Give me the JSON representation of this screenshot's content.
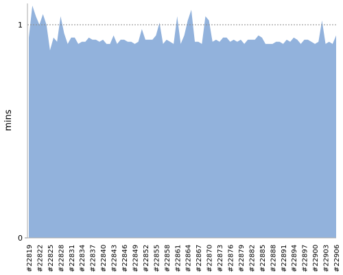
{
  "chart_data": {
    "type": "area",
    "ylabel": "mins",
    "color": "#92b2dc",
    "categories": [
      "#22819",
      null,
      null,
      "#22822",
      null,
      null,
      "#22825",
      null,
      null,
      "#22828",
      null,
      null,
      "#22831",
      null,
      null,
      "#22834",
      null,
      null,
      "#22837",
      null,
      null,
      "#22840",
      null,
      null,
      "#22843",
      null,
      null,
      "#22846",
      null,
      null,
      "#22849",
      null,
      null,
      "#22852",
      null,
      null,
      "#22855",
      null,
      null,
      "#22858",
      null,
      null,
      "#22861",
      null,
      null,
      "#22864",
      null,
      null,
      "#22867",
      null,
      null,
      "#22870",
      null,
      null,
      "#22873",
      null,
      null,
      "#22876",
      null,
      null,
      "#22879",
      null,
      null,
      "#22882",
      null,
      null,
      "#22885",
      null,
      null,
      "#22888",
      null,
      null,
      "#22891",
      null,
      null,
      "#22894",
      null,
      null,
      "#22897",
      null,
      null,
      "#22900",
      null,
      null,
      "#22903",
      null,
      null,
      "#22906"
    ],
    "values": [
      0.94,
      1.09,
      1.04,
      1.0,
      1.05,
      1.0,
      0.88,
      0.94,
      0.92,
      1.04,
      0.96,
      0.91,
      0.94,
      0.94,
      0.91,
      0.92,
      0.92,
      0.94,
      0.93,
      0.93,
      0.92,
      0.93,
      0.91,
      0.91,
      0.95,
      0.91,
      0.93,
      0.93,
      0.92,
      0.92,
      0.91,
      0.92,
      0.98,
      0.93,
      0.93,
      0.93,
      0.95,
      1.01,
      0.91,
      0.93,
      0.92,
      0.91,
      1.04,
      0.91,
      0.95,
      1.02,
      1.07,
      0.92,
      0.92,
      0.91,
      1.04,
      1.02,
      0.92,
      0.93,
      0.92,
      0.94,
      0.94,
      0.92,
      0.93,
      0.92,
      0.93,
      0.91,
      0.93,
      0.93,
      0.93,
      0.95,
      0.94,
      0.91,
      0.91,
      0.91,
      0.92,
      0.92,
      0.91,
      0.93,
      0.92,
      0.94,
      0.93,
      0.91,
      0.93,
      0.93,
      0.92,
      0.91,
      0.92,
      1.02,
      0.91,
      0.92,
      0.91,
      0.95
    ],
    "ylim": [
      0,
      1.1
    ],
    "yticks": [
      0,
      1
    ],
    "grid": true
  }
}
